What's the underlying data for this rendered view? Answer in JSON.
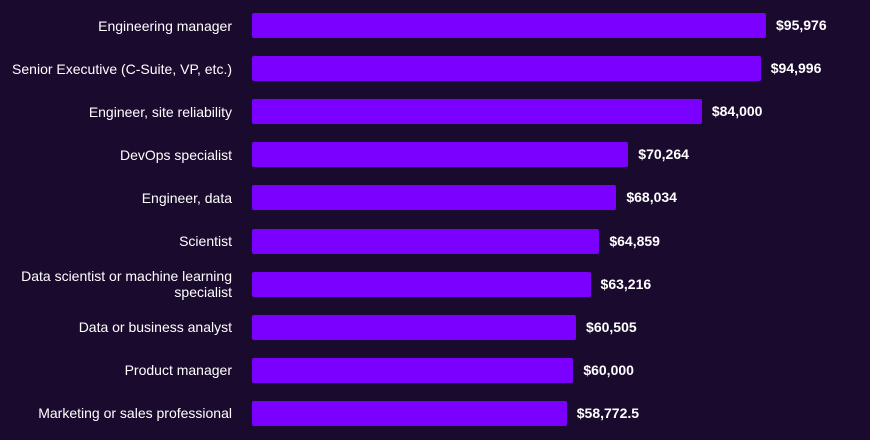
{
  "chart_data": {
    "type": "bar",
    "orientation": "horizontal",
    "categories": [
      "Engineering manager",
      "Senior Executive (C-Suite, VP, etc.)",
      "Engineer, site reliability",
      "DevOps specialist",
      "Engineer, data",
      "Scientist",
      "Data scientist or machine learning specialist",
      "Data or business analyst",
      "Product manager",
      "Marketing or sales professional"
    ],
    "values": [
      95976,
      94996,
      84000,
      70264,
      68034,
      64859,
      63216,
      60505,
      60000,
      58772.5
    ],
    "value_labels": [
      "$95,976",
      "$94,996",
      "$84,000",
      "$70,264",
      "$68,034",
      "$64,859",
      "$63,216",
      "$60,505",
      "$60,000",
      "$58,772.5"
    ],
    "xlim": [
      0,
      95976
    ],
    "grid": false,
    "legend": "none",
    "colors": {
      "bar": "#7b00ff",
      "background": "#1a0a2e",
      "text": "#ffffff"
    }
  }
}
